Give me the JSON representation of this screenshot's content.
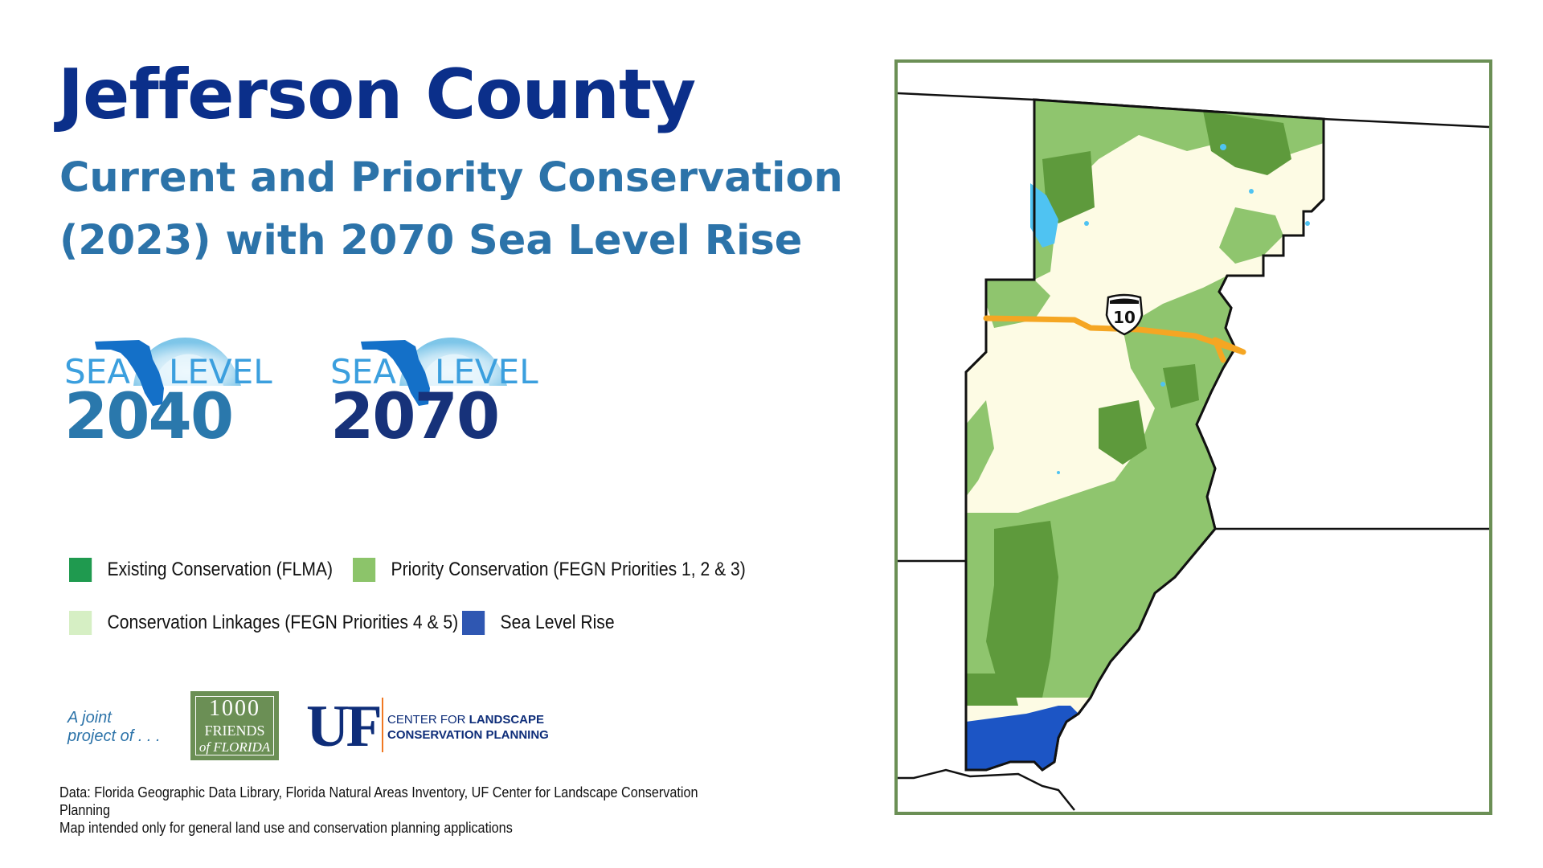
{
  "title": "Jefferson County",
  "subtitle_line1": "Current and Priority Conservation",
  "subtitle_line2": "(2023) with 2070 Sea Level Rise",
  "logos": [
    {
      "sea": "SEA",
      "level": "LEVEL",
      "year": "2040"
    },
    {
      "sea": "SEA",
      "level": "LEVEL",
      "year": "2070"
    }
  ],
  "legend": [
    {
      "label": "Existing Conservation (FLMA)",
      "color": "#1f9a4f"
    },
    {
      "label": "Priority Conservation (FEGN Priorities 1, 2 & 3)",
      "color": "#8cc46a"
    },
    {
      "label": "Conservation Linkages (FEGN Priorities 4 & 5)",
      "color": "#d6efc4"
    },
    {
      "label": "Sea Level Rise",
      "color": "#2f57b2"
    }
  ],
  "joint_line1": "A joint",
  "joint_line2": "project of . . .",
  "friends": {
    "num": "1000",
    "mid": "FRIENDS",
    "bot": "of FLORIDA"
  },
  "uf": {
    "mark": "UF",
    "line1_a": "CENTER FOR ",
    "line1_b": "LANDSCAPE",
    "line2": "CONSERVATION PLANNING"
  },
  "footnote_line1": "Data: Florida Geographic Data Library, Florida Natural Areas Inventory, UF Center for Landscape Conservation Planning",
  "footnote_line2": "Map intended only for general land use and conservation planning applications",
  "map": {
    "highway_label": "10",
    "colors": {
      "existing": "#5e9a3c",
      "priority": "#8fc56e",
      "linkage": "#fdfbe4",
      "slr": "#1c55c5",
      "water": "#4fc3f2",
      "highway": "#f5a623"
    }
  }
}
